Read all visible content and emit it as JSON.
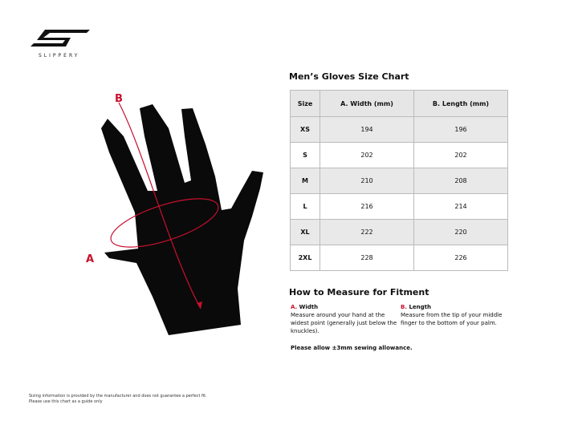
{
  "brand": {
    "name": "SLIPPERY"
  },
  "chart": {
    "title": "Men’s Gloves Size Chart",
    "headers": [
      "Size",
      "A. Width (mm)",
      "B. Length (mm)"
    ],
    "rows": [
      [
        "XS",
        "194",
        "196"
      ],
      [
        "S",
        "202",
        "202"
      ],
      [
        "M",
        "210",
        "208"
      ],
      [
        "L",
        "216",
        "214"
      ],
      [
        "XL",
        "222",
        "220"
      ],
      [
        "2XL",
        "228",
        "226"
      ]
    ]
  },
  "measure": {
    "title": "How to Measure for Fitment",
    "a": {
      "letter": "A.",
      "label": "Width",
      "text": "Measure around your hand at the widest point (generally just below the knuckles)."
    },
    "b": {
      "letter": "B.",
      "label": "Length",
      "text": "Measure from the tip of your middle finger to the bottom of your palm."
    },
    "allowance": "Please allow ±3mm sewing allowance."
  },
  "diagram": {
    "label_a": "A",
    "label_b": "B",
    "accent": "#c8102e"
  },
  "disclaimer": {
    "line1": "Sizing information is provided by the manufacturer and does not guarantee a perfect fit.",
    "line2": "Please use this chart as a guide only"
  }
}
